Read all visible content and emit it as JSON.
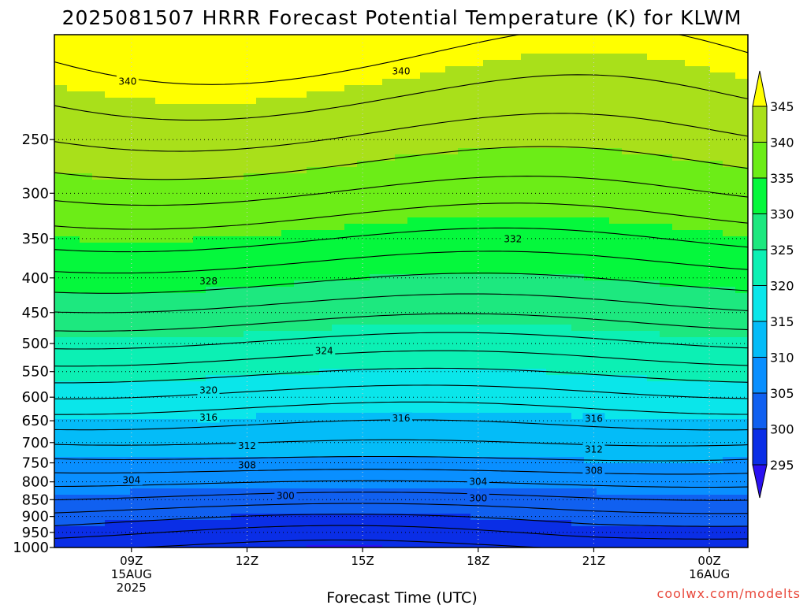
{
  "chart_data": {
    "type": "contour",
    "title": "2025081507 HRRR Forecast Potential Temperature (K) for KLWM",
    "xlabel": "Forecast Time (UTC)",
    "ylabel": "",
    "credit": "coolwx.com/modelts",
    "y_scale": "log-pressure",
    "y_range": [
      1000,
      175
    ],
    "y_ticks": [
      "250",
      "300",
      "350",
      "400",
      "450",
      "500",
      "550",
      "600",
      "650",
      "700",
      "750",
      "800",
      "850",
      "900",
      "950",
      "1000"
    ],
    "x_range_hours": [
      0,
      18
    ],
    "x_ticks": [
      {
        "hour": 2,
        "lines": [
          "09Z",
          "15AUG",
          "2025"
        ]
      },
      {
        "hour": 5,
        "lines": [
          "12Z"
        ]
      },
      {
        "hour": 8,
        "lines": [
          "15Z"
        ]
      },
      {
        "hour": 11,
        "lines": [
          "18Z"
        ]
      },
      {
        "hour": 14,
        "lines": [
          "21Z"
        ]
      },
      {
        "hour": 17,
        "lines": [
          "00Z",
          "16AUG"
        ]
      }
    ],
    "grid": true,
    "legend": "colorbar-right",
    "colorbar": {
      "levels": [
        "295",
        "300",
        "305",
        "310",
        "315",
        "320",
        "325",
        "330",
        "335",
        "340",
        "345"
      ],
      "colors": [
        "#2a11f2",
        "#0a2ee6",
        "#1060f0",
        "#098fff",
        "#04bcf8",
        "#0ae6ea",
        "#0cf0b4",
        "#1de87f",
        "#05f83c",
        "#6ced17",
        "#a9e01a",
        "#ffff00"
      ],
      "extend": "both"
    },
    "contour_labels": [
      {
        "text": "340",
        "hour": 1.9,
        "p": 205
      },
      {
        "text": "340",
        "hour": 9.0,
        "p": 198
      },
      {
        "text": "332",
        "hour": 11.9,
        "p": 350
      },
      {
        "text": "328",
        "hour": 4.0,
        "p": 404
      },
      {
        "text": "324",
        "hour": 7.0,
        "p": 512
      },
      {
        "text": "320",
        "hour": 4.0,
        "p": 585
      },
      {
        "text": "316",
        "hour": 4.0,
        "p": 642
      },
      {
        "text": "316",
        "hour": 9.0,
        "p": 644
      },
      {
        "text": "316",
        "hour": 14.0,
        "p": 645
      },
      {
        "text": "312",
        "hour": 5.0,
        "p": 707
      },
      {
        "text": "312",
        "hour": 14.0,
        "p": 716
      },
      {
        "text": "308",
        "hour": 5.0,
        "p": 755
      },
      {
        "text": "308",
        "hour": 14.0,
        "p": 769
      },
      {
        "text": "304",
        "hour": 2.0,
        "p": 794
      },
      {
        "text": "304",
        "hour": 11.0,
        "p": 799
      },
      {
        "text": "300",
        "hour": 6.0,
        "p": 838
      },
      {
        "text": "300",
        "hour": 11.0,
        "p": 845
      }
    ],
    "surface_color": "#a0522d"
  }
}
